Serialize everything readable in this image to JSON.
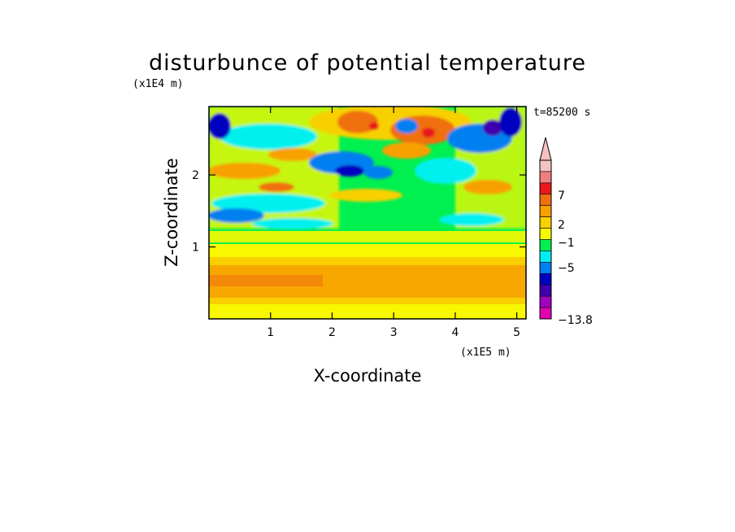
{
  "chart_data": {
    "type": "heatmap",
    "title": "disturbunce of potential temperature",
    "xlabel": "X-coordinate",
    "ylabel": "Z-coordinate",
    "x_unit": "(x1E5 m)",
    "y_unit": "(x1E4 m)",
    "time_label": "t=85200 s",
    "xlim": [
      0,
      5.15
    ],
    "ylim": [
      0,
      2.95
    ],
    "x_ticks": [
      1,
      2,
      3,
      4,
      5
    ],
    "y_ticks": [
      1,
      2
    ],
    "colorbar": {
      "labels": [
        "7",
        "2",
        "−1",
        "−5",
        "−13.8"
      ],
      "label_levels": [
        7,
        2,
        -1,
        -5,
        -13.8
      ],
      "bands": [
        {
          "color": "#f4c2c2"
        },
        {
          "color": "#f08080"
        },
        {
          "color": "#e8181a"
        },
        {
          "color": "#f07010"
        },
        {
          "color": "#f8a000"
        },
        {
          "color": "#f8d000"
        },
        {
          "color": "#f8f800"
        },
        {
          "color": "#00f050"
        },
        {
          "color": "#00f0f0"
        },
        {
          "color": "#0080f0"
        },
        {
          "color": "#0000c0"
        },
        {
          "color": "#4000b0"
        },
        {
          "color": "#a000c0"
        },
        {
          "color": "#e000b0"
        }
      ]
    }
  }
}
